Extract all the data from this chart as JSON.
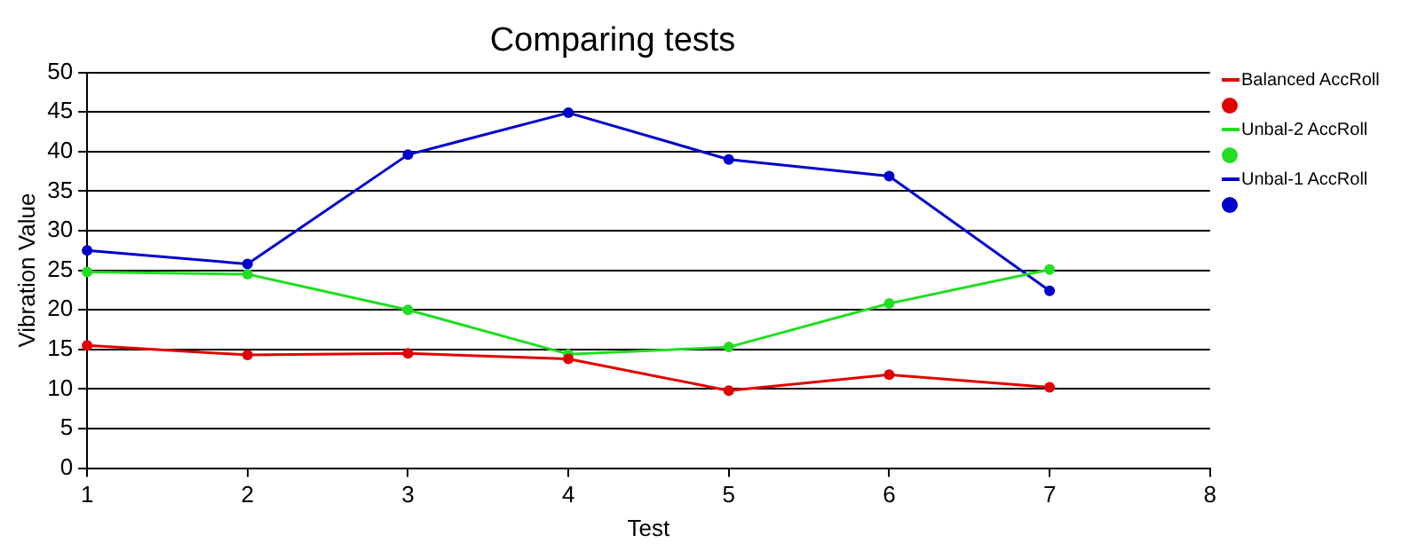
{
  "chart_data": {
    "type": "line",
    "title": "Comparing tests",
    "xlabel": "Test",
    "ylabel": "Vibration Value",
    "x": [
      1,
      2,
      3,
      4,
      5,
      6,
      7
    ],
    "series": [
      {
        "name": "Balanced AccRoll",
        "color": "#e00000",
        "values": [
          15.5,
          14.3,
          14.5,
          13.8,
          9.8,
          11.8,
          10.2
        ]
      },
      {
        "name": "Unbal-2 AccRoll",
        "color": "#22dd22",
        "values": [
          24.8,
          24.5,
          20.0,
          14.4,
          15.3,
          20.8,
          25.1
        ]
      },
      {
        "name": "Unbal-1 AccRoll",
        "color": "#0000cc",
        "values": [
          27.5,
          25.8,
          39.6,
          44.9,
          39.0,
          36.9,
          22.4
        ]
      }
    ],
    "xlim": [
      1,
      8
    ],
    "xticks": [
      1,
      2,
      3,
      4,
      5,
      6,
      7,
      8
    ],
    "ylim": [
      0,
      50
    ],
    "yticks": [
      0,
      5,
      10,
      15,
      20,
      25,
      30,
      35,
      40,
      45,
      50
    ],
    "grid": "y",
    "legend": "right",
    "marker": "circle",
    "line_style": "solid"
  }
}
